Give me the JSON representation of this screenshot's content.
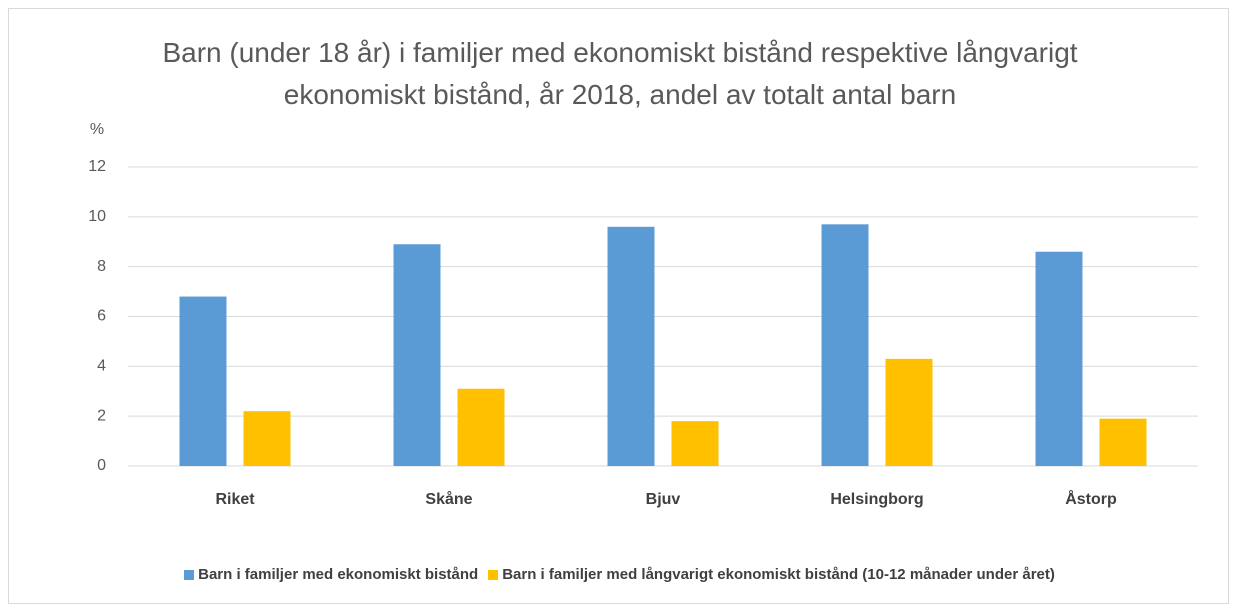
{
  "chart_data": {
    "type": "bar",
    "title": "Barn (under 18 år) i familjer med ekonomiskt bistånd respektive långvarigt ekonomiskt bistånd, år 2018, andel av totalt antal barn",
    "y_label": "%",
    "categories": [
      "Riket",
      "Skåne",
      "Bjuv",
      "Helsingborg",
      "Åstorp"
    ],
    "series": [
      {
        "name": "Barn i familjer med ekonomiskt bistånd",
        "color": "#5b9bd5",
        "values": [
          6.8,
          8.9,
          9.6,
          9.7,
          8.6
        ]
      },
      {
        "name": "Barn i familjer med långvarigt ekonomiskt bistånd (10-12 månader under året)",
        "color": "#ffc000",
        "values": [
          2.2,
          3.1,
          1.8,
          4.3,
          1.9
        ]
      }
    ],
    "ylim": [
      0,
      12
    ],
    "yticks": [
      0,
      2,
      4,
      6,
      8,
      10,
      12
    ],
    "grid": true,
    "legend": "bottom"
  }
}
